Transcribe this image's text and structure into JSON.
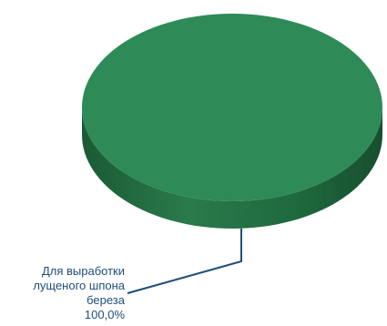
{
  "chart_data": {
    "type": "pie",
    "style": "3d",
    "slices": [
      {
        "label_lines": [
          "Для выработки",
          "лущеного шпона",
          "береза",
          "100,0%"
        ],
        "value": 100.0,
        "color": "#2e8b57",
        "side_color": "#1f6a3f"
      }
    ],
    "label_color": "#1f4e79",
    "leader_color": "#1f4e79"
  }
}
